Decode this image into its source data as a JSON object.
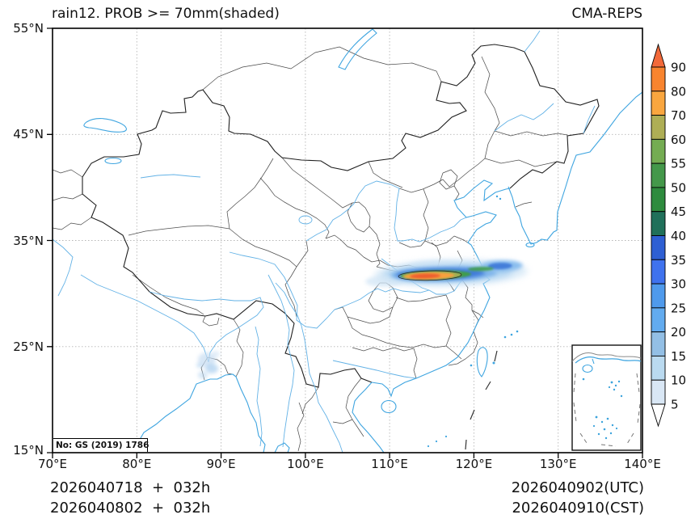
{
  "header": {
    "title": "rain12. PROB >= 70mm(shaded)",
    "model": "CMA-REPS"
  },
  "axes": {
    "x_ticks": [
      "70°E",
      "80°E",
      "90°E",
      "100°E",
      "110°E",
      "120°E",
      "130°E",
      "140°E"
    ],
    "y_ticks": [
      "55°N",
      "45°N",
      "35°N",
      "25°N",
      "15°N"
    ]
  },
  "footer": {
    "init_line1": "2026040718  +  032h",
    "init_line2": "2026040802  +  032h",
    "valid_line1": "2026040902(UTC)",
    "valid_line2": "2026040910(CST)"
  },
  "map": {
    "license_note": "No: GS (2019) 1786"
  },
  "colorbar": {
    "ticks": [
      "90",
      "80",
      "70",
      "60",
      "55",
      "50",
      "45",
      "40",
      "35",
      "30",
      "25",
      "20",
      "15",
      "10",
      "5"
    ],
    "segment_colors_top_to_bottom": [
      "#f8842f",
      "#f9a63f",
      "#aeae55",
      "#74ac52",
      "#44984a",
      "#2e8b3e",
      "#20705a",
      "#2e5fd3",
      "#3f72ee",
      "#4f9aec",
      "#62abef",
      "#93bfe5",
      "#badaf0",
      "#d9e7f5"
    ],
    "over_color": "#f2693a",
    "under_color": "#ffffff"
  },
  "chart_data": {
    "type": "heatmap",
    "title": "rain12. PROB >= 70mm(shaded)",
    "model": "CMA-REPS",
    "x_axis": {
      "label": "longitude",
      "ticks": [
        "70°E",
        "80°E",
        "90°E",
        "100°E",
        "110°E",
        "120°E",
        "130°E",
        "140°E"
      ],
      "range": [
        70,
        140
      ]
    },
    "y_axis": {
      "label": "latitude",
      "ticks": [
        "55°N",
        "45°N",
        "35°N",
        "25°N",
        "15°N"
      ],
      "range": [
        15,
        55
      ]
    },
    "colorbar_levels": [
      5,
      10,
      15,
      20,
      25,
      30,
      35,
      40,
      45,
      50,
      55,
      60,
      70,
      80,
      90
    ],
    "legend_position": "right",
    "features": [
      {
        "name": "main-probability-band",
        "description": "elongated west-east shaded band, max core > 90",
        "lat_center": 32,
        "lon_range": [
          110.5,
          122
        ]
      },
      {
        "name": "secondary-weak-area",
        "description": "weak light-blue shading near 88-91E, 22-26N, values ~5-15",
        "lat_range": [
          22,
          26
        ],
        "lon_range": [
          87,
          91
        ]
      }
    ]
  }
}
